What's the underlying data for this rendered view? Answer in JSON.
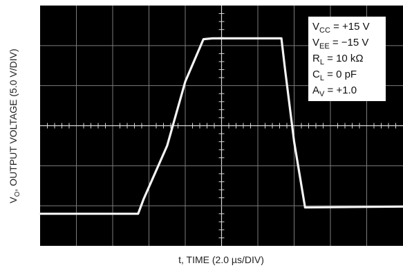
{
  "chart_data": {
    "type": "line",
    "title": "",
    "xlabel": "t, TIME (2.0 µs/DIV)",
    "ylabel": {
      "prefix": "V",
      "sub": "O",
      "rest": ", OUTPUT VOLTAGE (5.0 V/DIV)"
    },
    "x_unit": "µs",
    "y_unit": "V",
    "x_per_div": 2.0,
    "y_per_div": 5.0,
    "x_divisions": 10,
    "y_divisions": 6,
    "xlim": [
      -10,
      10
    ],
    "ylim": [
      -15,
      15
    ],
    "grid": true,
    "series": [
      {
        "x": [
          -10.0,
          -4.6,
          -4.3,
          -3.0,
          -2.0,
          -1.0,
          -0.5,
          0.5,
          2.6,
          3.3,
          3.5,
          4.0,
          4.6,
          10.0
        ],
        "y": [
          -11.0,
          -11.0,
          -9.2,
          -2.5,
          5.5,
          10.8,
          10.9,
          10.9,
          10.9,
          10.9,
          7.0,
          -2.0,
          -10.2,
          -10.1
        ]
      }
    ],
    "annotations": [
      {
        "pre": "V",
        "sub": "CC",
        "post": " = +15 V"
      },
      {
        "pre": "V",
        "sub": "EE",
        "post": " = −15 V"
      },
      {
        "pre": "R",
        "sub": "L",
        "post": " = 10 kΩ"
      },
      {
        "pre": "C",
        "sub": "L",
        "post": " = 0 pF"
      },
      {
        "pre": "A",
        "sub": "V",
        "post": " = +1.0"
      }
    ],
    "annotation_position": "top-right"
  },
  "colors": {
    "screen": "#000000",
    "grid": "#7d7d7d",
    "trace": "#f4f4f4",
    "annotation_box": "#ffffff"
  }
}
